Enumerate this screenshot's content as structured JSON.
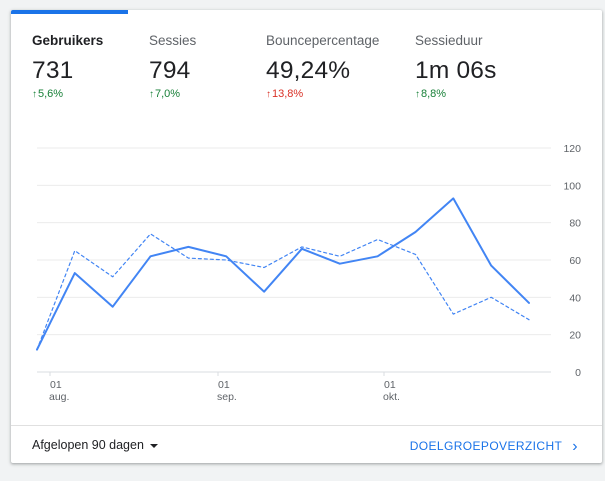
{
  "metrics": [
    {
      "label": "Gebruikers",
      "value": "731",
      "delta": "5,6%",
      "trend": "up",
      "color": "#188038",
      "active": true
    },
    {
      "label": "Sessies",
      "value": "794",
      "delta": "7,0%",
      "trend": "up",
      "color": "#188038",
      "active": false
    },
    {
      "label": "Bouncepercentage",
      "value": "49,24%",
      "delta": "13,8%",
      "trend": "up",
      "color": "#d93025",
      "active": false
    },
    {
      "label": "Sessieduur",
      "value": "1m 06s",
      "delta": "8,8%",
      "trend": "up",
      "color": "#188038",
      "active": false
    }
  ],
  "chart_data": {
    "type": "line",
    "ylim": [
      0,
      120
    ],
    "yticks": [
      0,
      20,
      40,
      60,
      80,
      100,
      120
    ],
    "xticks": [
      {
        "day": "01",
        "month": "aug."
      },
      {
        "day": "01",
        "month": "sep."
      },
      {
        "day": "01",
        "month": "okt."
      }
    ],
    "grid": true,
    "series": [
      {
        "style": "solid",
        "color": "#4285f4",
        "values": [
          12,
          53,
          35,
          62,
          67,
          62,
          43,
          66,
          58,
          62,
          75,
          93,
          57,
          37
        ]
      },
      {
        "style": "dashed",
        "color": "#4285f4",
        "values": [
          12,
          65,
          51,
          74,
          61,
          60,
          56,
          67,
          62,
          71,
          63,
          31,
          40,
          28
        ]
      }
    ]
  },
  "footer": {
    "range_label": "Afgelopen 90 dagen",
    "cta_label": "DOELGROEPOVERZICHT"
  }
}
